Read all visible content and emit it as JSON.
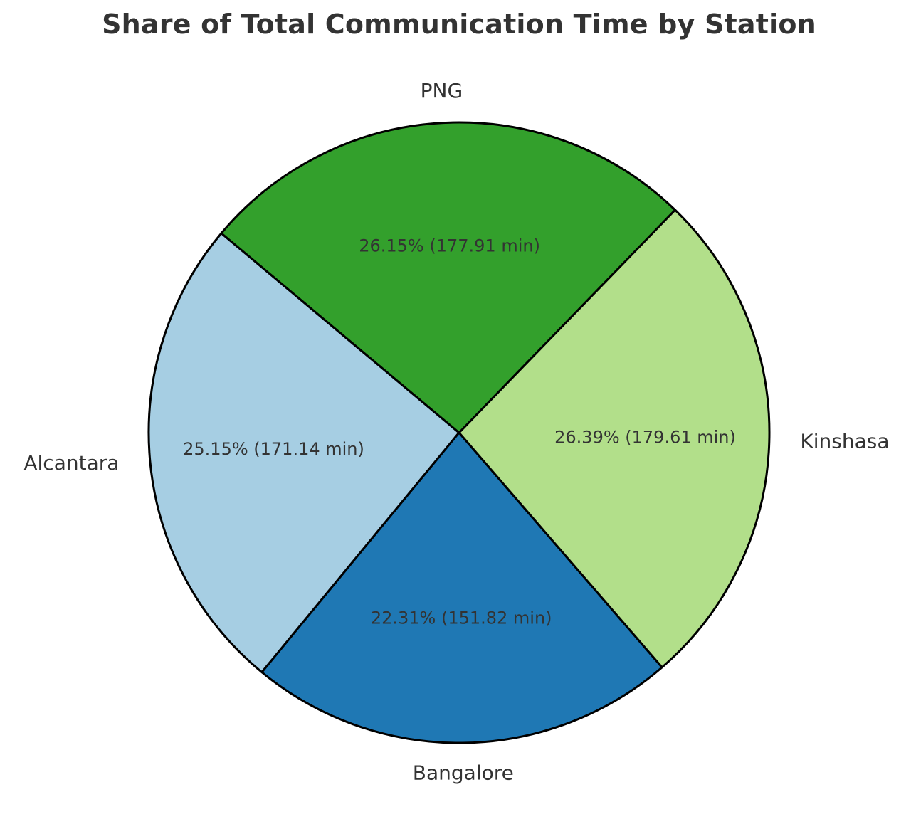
{
  "chart_data": {
    "type": "pie",
    "title": "Share of Total Communication Time by Station",
    "unit": "min",
    "slices": [
      {
        "label": "Alcantara",
        "value": 171.14,
        "percent": 25.15,
        "value_label": "25.15% (171.14 min)",
        "color": "#a6cee3"
      },
      {
        "label": "Bangalore",
        "value": 151.82,
        "percent": 22.31,
        "value_label": "22.31% (151.82 min)",
        "color": "#1f78b4"
      },
      {
        "label": "Kinshasa",
        "value": 179.61,
        "percent": 26.39,
        "value_label": "26.39% (179.61 min)",
        "color": "#b2df8a"
      },
      {
        "label": "PNG",
        "value": 177.91,
        "percent": 26.15,
        "value_label": "26.15% (177.91 min)",
        "color": "#33a02c"
      }
    ],
    "start_angle_deg": 140,
    "direction": "counterclockwise",
    "edge_color": "#000000",
    "legend": "none"
  }
}
